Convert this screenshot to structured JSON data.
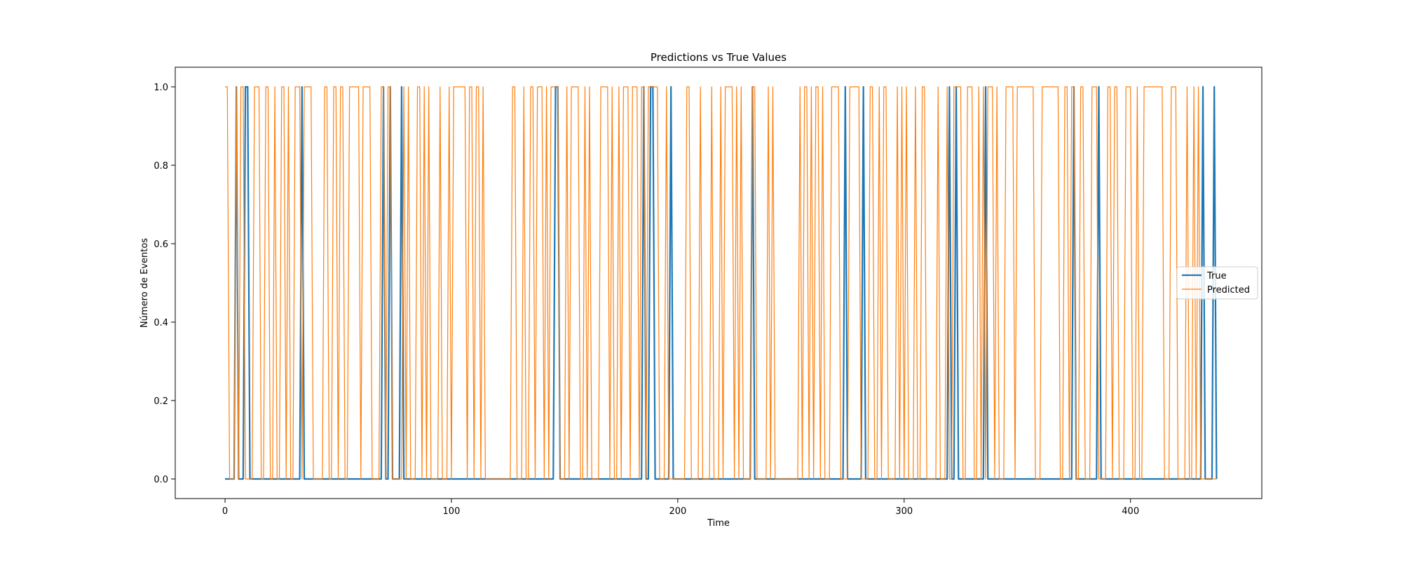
{
  "chart_data": {
    "type": "line",
    "title": "Predictions vs True Values",
    "xlabel": "Time",
    "ylabel": "Número de Eventos",
    "xlim": [
      -22,
      458
    ],
    "ylim": [
      -0.05,
      1.05
    ],
    "x_ticks": [
      0,
      100,
      200,
      300,
      400
    ],
    "y_ticks": [
      0.0,
      0.2,
      0.4,
      0.6,
      0.8,
      1.0
    ],
    "y_tick_labels": [
      "0.0",
      "0.2",
      "0.4",
      "0.6",
      "0.8",
      "1.0"
    ],
    "grid": false,
    "legend_position": "center right",
    "n_points": 439,
    "series": [
      {
        "name": "True",
        "color": "#1f77b4",
        "line_width": 2.2,
        "value_one_at": [
          5,
          9,
          10,
          34,
          70,
          73,
          78,
          146,
          147,
          185,
          188,
          189,
          197,
          233,
          274,
          282,
          320,
          323,
          336,
          375,
          386,
          432,
          437
        ]
      },
      {
        "name": "Predicted",
        "color": "#ff7f0e",
        "line_width": 1.2,
        "value_one_at": [
          0,
          1,
          5,
          7,
          8,
          13,
          14,
          15,
          18,
          19,
          22,
          25,
          26,
          28,
          31,
          32,
          33,
          35,
          36,
          37,
          38,
          44,
          45,
          48,
          49,
          51,
          52,
          55,
          56,
          57,
          58,
          59,
          61,
          62,
          63,
          64,
          69,
          70,
          72,
          73,
          79,
          81,
          85,
          86,
          88,
          90,
          95,
          99,
          101,
          102,
          103,
          104,
          105,
          106,
          108,
          109,
          111,
          112,
          114,
          127,
          128,
          132,
          135,
          136,
          138,
          139,
          140,
          142,
          144,
          145,
          146,
          147,
          151,
          153,
          154,
          155,
          156,
          159,
          161,
          166,
          167,
          168,
          169,
          171,
          174,
          176,
          177,
          178,
          180,
          181,
          182,
          184,
          185,
          187,
          188,
          189,
          190,
          191,
          195,
          204,
          205,
          210,
          215,
          219,
          221,
          222,
          223,
          224,
          226,
          228,
          233,
          234,
          240,
          242,
          254,
          256,
          257,
          259,
          261,
          262,
          264,
          268,
          269,
          270,
          271,
          276,
          277,
          278,
          279,
          280,
          285,
          286,
          289,
          291,
          292,
          297,
          299,
          301,
          305,
          308,
          309,
          315,
          319,
          322,
          323,
          324,
          325,
          328,
          329,
          330,
          333,
          335,
          337,
          338,
          339,
          341,
          345,
          346,
          347,
          348,
          350,
          351,
          352,
          353,
          354,
          355,
          356,
          357,
          361,
          362,
          363,
          364,
          365,
          366,
          367,
          368,
          371,
          372,
          374,
          375,
          378,
          379,
          383,
          384,
          385,
          390,
          391,
          393,
          394,
          398,
          399,
          400,
          403,
          406,
          407,
          408,
          409,
          410,
          411,
          412,
          413,
          414,
          418,
          419,
          420,
          425,
          428,
          430
        ]
      }
    ]
  }
}
